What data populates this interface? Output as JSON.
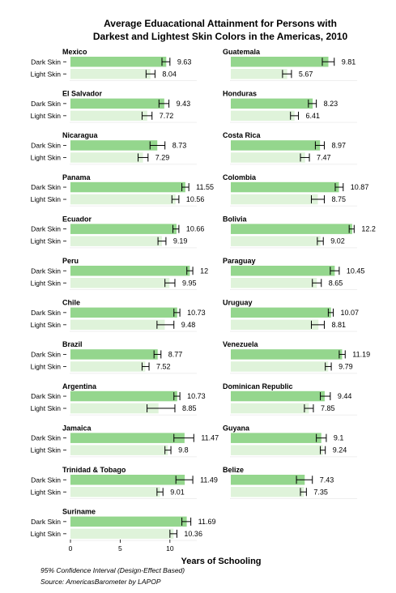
{
  "chart_data": {
    "type": "bar",
    "orientation": "horizontal",
    "layout": "facets",
    "title": "Average Eduacational Attainment for Persons with Darkest and Lightest Skin Colors in the Americas, 2010",
    "title_lines": [
      "Average Eduacational Attainment for Persons with",
      "Darkest and Lightest Skin Colors in the Americas, 2010"
    ],
    "categories": [
      "Dark Skin",
      "Light Skin"
    ],
    "xlabel": "Years of Schooling",
    "xlim": [
      0,
      12.7
    ],
    "xticks": [
      0,
      5,
      10
    ],
    "error_bars": "95% confidence interval",
    "colors": {
      "dark": "#94d68d",
      "light": "#dff3da"
    },
    "notes": [
      "95% Confidence Interval (Design-Effect Based)",
      "Source: AmericasBarometer by LAPOP"
    ],
    "panels": [
      {
        "name": "Mexico",
        "dark": 9.63,
        "dark_label": "9.63",
        "dark_ci": [
          9.2,
          10.0
        ],
        "light": 8.04,
        "light_label": "8.04",
        "light_ci": [
          7.6,
          8.5
        ]
      },
      {
        "name": "Guatemala",
        "dark": 9.81,
        "dark_label": "9.81",
        "dark_ci": [
          9.2,
          10.4
        ],
        "light": 5.67,
        "light_label": "5.67",
        "light_ci": [
          5.2,
          6.1
        ]
      },
      {
        "name": "El Salvador",
        "dark": 9.43,
        "dark_label": "9.43",
        "dark_ci": [
          8.9,
          9.9
        ],
        "light": 7.72,
        "light_label": "7.72",
        "light_ci": [
          7.2,
          8.2
        ]
      },
      {
        "name": "Honduras",
        "dark": 8.23,
        "dark_label": "8.23",
        "dark_ci": [
          7.8,
          8.6
        ],
        "light": 6.41,
        "light_label": "6.41",
        "light_ci": [
          6.0,
          6.8
        ]
      },
      {
        "name": "Nicaragua",
        "dark": 8.73,
        "dark_label": "8.73",
        "dark_ci": [
          8.0,
          9.5
        ],
        "light": 7.29,
        "light_label": "7.29",
        "light_ci": [
          6.8,
          7.8
        ]
      },
      {
        "name": "Costa Rica",
        "dark": 8.97,
        "dark_label": "8.97",
        "dark_ci": [
          8.5,
          9.4
        ],
        "light": 7.47,
        "light_label": "7.47",
        "light_ci": [
          7.0,
          7.9
        ]
      },
      {
        "name": "Panama",
        "dark": 11.55,
        "dark_label": "11.55",
        "dark_ci": [
          11.2,
          11.9
        ],
        "light": 10.56,
        "light_label": "10.56",
        "light_ci": [
          10.2,
          10.9
        ]
      },
      {
        "name": "Colombia",
        "dark": 10.87,
        "dark_label": "10.87",
        "dark_ci": [
          10.5,
          11.3
        ],
        "light": 8.75,
        "light_label": "8.75",
        "light_ci": [
          8.1,
          9.4
        ]
      },
      {
        "name": "Ecuador",
        "dark": 10.66,
        "dark_label": "10.66",
        "dark_ci": [
          10.3,
          10.9
        ],
        "light": 9.19,
        "light_label": "9.19",
        "light_ci": [
          8.8,
          9.6
        ]
      },
      {
        "name": "Bolivia",
        "dark": 12.2,
        "dark_label": "12.2",
        "dark_ci": [
          11.9,
          12.4
        ],
        "light": 9.02,
        "light_label": "9.02",
        "light_ci": [
          8.7,
          9.3
        ]
      },
      {
        "name": "Peru",
        "dark": 12,
        "dark_label": "12",
        "dark_ci": [
          11.7,
          12.3
        ],
        "light": 9.95,
        "light_label": "9.95",
        "light_ci": [
          9.5,
          10.5
        ]
      },
      {
        "name": "Paraguay",
        "dark": 10.45,
        "dark_label": "10.45",
        "dark_ci": [
          10.0,
          10.9
        ],
        "light": 8.65,
        "light_label": "8.65",
        "light_ci": [
          8.2,
          9.1
        ]
      },
      {
        "name": "Chile",
        "dark": 10.73,
        "dark_label": "10.73",
        "dark_ci": [
          10.4,
          11.0
        ],
        "light": 9.48,
        "light_label": "9.48",
        "light_ci": [
          8.7,
          10.4
        ]
      },
      {
        "name": "Uruguay",
        "dark": 10.07,
        "dark_label": "10.07",
        "dark_ci": [
          9.8,
          10.3
        ],
        "light": 8.81,
        "light_label": "8.81",
        "light_ci": [
          8.1,
          9.4
        ]
      },
      {
        "name": "Brazil",
        "dark": 8.77,
        "dark_label": "8.77",
        "dark_ci": [
          8.4,
          9.1
        ],
        "light": 7.52,
        "light_label": "7.52",
        "light_ci": [
          7.2,
          7.9
        ]
      },
      {
        "name": "Venezuela",
        "dark": 11.19,
        "dark_label": "11.19",
        "dark_ci": [
          10.9,
          11.5
        ],
        "light": 9.79,
        "light_label": "9.79",
        "light_ci": [
          9.5,
          10.1
        ]
      },
      {
        "name": "Argentina",
        "dark": 10.73,
        "dark_label": "10.73",
        "dark_ci": [
          10.4,
          11.0
        ],
        "light": 8.85,
        "light_label": "8.85",
        "light_ci": [
          7.7,
          10.5
        ]
      },
      {
        "name": "Dominican Republic",
        "dark": 9.44,
        "dark_label": "9.44",
        "dark_ci": [
          9.0,
          10.0
        ],
        "light": 7.85,
        "light_label": "7.85",
        "light_ci": [
          7.4,
          8.3
        ]
      },
      {
        "name": "Jamaica",
        "dark": 11.47,
        "dark_label": "11.47",
        "dark_ci": [
          10.4,
          12.4
        ],
        "light": 9.8,
        "light_label": "9.8",
        "light_ci": [
          9.5,
          10.1
        ]
      },
      {
        "name": "Guyana",
        "dark": 9.1,
        "dark_label": "9.1",
        "dark_ci": [
          8.6,
          9.6
        ],
        "light": 9.24,
        "light_label": "9.24",
        "light_ci": [
          9.0,
          9.5
        ]
      },
      {
        "name": "Trinidad & Tobago",
        "dark": 11.49,
        "dark_label": "11.49",
        "dark_ci": [
          10.6,
          12.3
        ],
        "light": 9.01,
        "light_label": "9.01",
        "light_ci": [
          8.7,
          9.3
        ]
      },
      {
        "name": "Belize",
        "dark": 7.43,
        "dark_label": "7.43",
        "dark_ci": [
          6.6,
          8.2
        ],
        "light": 7.35,
        "light_label": "7.35",
        "light_ci": [
          7.0,
          7.6
        ]
      },
      {
        "name": "Suriname",
        "dark": 11.69,
        "dark_label": "11.69",
        "dark_ci": [
          11.2,
          12.1
        ],
        "light": 10.36,
        "light_label": "10.36",
        "light_ci": [
          10.0,
          10.7
        ]
      }
    ]
  }
}
